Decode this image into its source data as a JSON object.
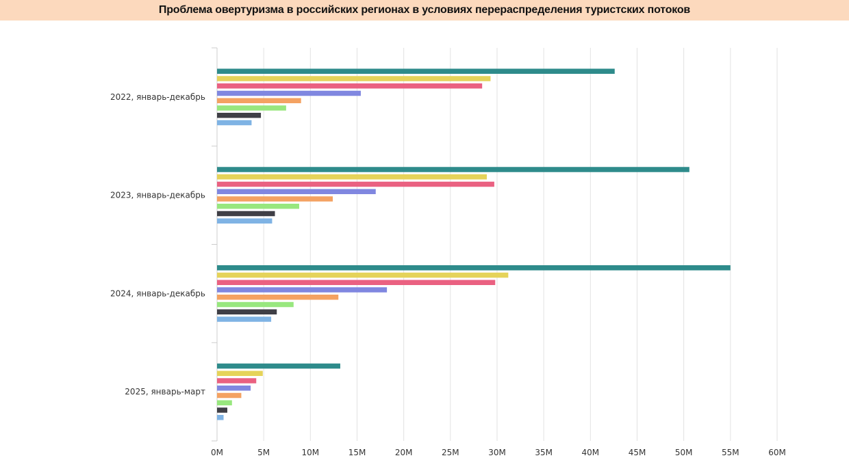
{
  "header": {
    "title": "Проблема овертуризма в российских регионах в условиях перераспределения туристских потоков"
  },
  "chart_data": {
    "type": "bar",
    "orientation": "horizontal",
    "title": "",
    "xlabel": "",
    "ylabel": "",
    "grid": true,
    "xlim": [
      0,
      60000000
    ],
    "x_ticks": [
      "0M",
      "5M",
      "10M",
      "15M",
      "20M",
      "25M",
      "30M",
      "35M",
      "40M",
      "45M",
      "50M",
      "55M",
      "60M"
    ],
    "categories": [
      "2022, январь-декабрь",
      "2023, январь-декабрь",
      "2024, январь-декабрь",
      "2025, январь-март"
    ],
    "series": [
      {
        "color": "#2e8b8b",
        "values": [
          42600000,
          50600000,
          55000000,
          13200000
        ]
      },
      {
        "color": "#e5d35a",
        "values": [
          29300000,
          28900000,
          31200000,
          4900000
        ]
      },
      {
        "color": "#ea6181",
        "values": [
          28400000,
          29700000,
          29800000,
          4200000
        ]
      },
      {
        "color": "#8087e0",
        "values": [
          15400000,
          17000000,
          18200000,
          3600000
        ]
      },
      {
        "color": "#f4a262",
        "values": [
          9000000,
          12400000,
          13000000,
          2600000
        ]
      },
      {
        "color": "#98e77e",
        "values": [
          7400000,
          8800000,
          8200000,
          1600000
        ]
      },
      {
        "color": "#3f3f46",
        "values": [
          4700000,
          6200000,
          6400000,
          1100000
        ]
      },
      {
        "color": "#7fb3e4",
        "values": [
          3700000,
          5900000,
          5800000,
          700000
        ]
      }
    ]
  }
}
